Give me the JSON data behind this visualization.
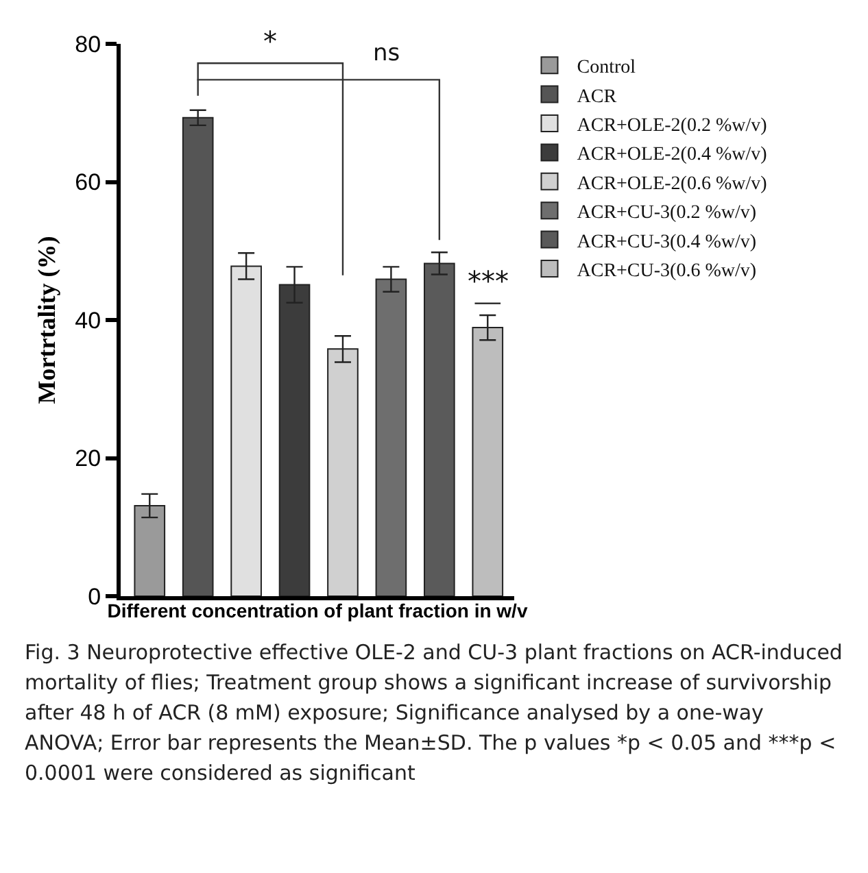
{
  "chart_data": {
    "type": "bar",
    "ylabel": "Mortrtality (%)",
    "xlabel": "Different concentration of plant fraction in w/v",
    "categories": [
      null,
      null,
      null,
      null,
      null,
      null,
      null,
      null
    ],
    "series": [
      {
        "name": "Control",
        "color": "#9a9a9a",
        "values": [
          13.1,
          null,
          null,
          null,
          null,
          null,
          null,
          null
        ],
        "errors": [
          1.7,
          null,
          null,
          null,
          null,
          null,
          null,
          null
        ]
      },
      {
        "name": "ACR",
        "color": "#555555",
        "values": [
          null,
          69.3,
          null,
          null,
          null,
          null,
          null,
          null
        ],
        "errors": [
          null,
          1.1,
          null,
          null,
          null,
          null,
          null,
          null
        ]
      },
      {
        "name": "ACR+OLE-2(0.2 %w/v)",
        "color": "#e0e0e0",
        "values": [
          null,
          null,
          47.8,
          null,
          null,
          null,
          null,
          null
        ],
        "errors": [
          null,
          null,
          1.9,
          null,
          null,
          null,
          null,
          null
        ]
      },
      {
        "name": "ACR+OLE-2(0.4 %w/v)",
        "color": "#3c3c3c",
        "values": [
          null,
          null,
          null,
          45.1,
          null,
          null,
          null,
          null
        ],
        "errors": [
          null,
          null,
          null,
          2.6,
          null,
          null,
          null,
          null
        ]
      },
      {
        "name": "ACR+OLE-2(0.6 %w/v)",
        "color": "#d0d0d0",
        "values": [
          null,
          null,
          null,
          null,
          35.8,
          null,
          null,
          null
        ],
        "errors": [
          null,
          null,
          null,
          null,
          1.9,
          null,
          null,
          null
        ]
      },
      {
        "name": "ACR+CU-3(0.2 %w/v)",
        "color": "#6e6e6e",
        "values": [
          null,
          null,
          null,
          null,
          null,
          45.9,
          null,
          null
        ],
        "errors": [
          null,
          null,
          null,
          null,
          null,
          1.8,
          null,
          null
        ]
      },
      {
        "name": "ACR+CU-3(0.4 %w/v)",
        "color": "#5a5a5a",
        "values": [
          null,
          null,
          null,
          null,
          null,
          null,
          48.2,
          null
        ],
        "errors": [
          null,
          null,
          null,
          null,
          null,
          null,
          1.6,
          null
        ]
      },
      {
        "name": "ACR+CU-3(0.6 %w/v)",
        "color": "#bdbdbd",
        "values": [
          null,
          null,
          null,
          null,
          null,
          null,
          null,
          38.9
        ],
        "errors": [
          null,
          null,
          null,
          null,
          null,
          null,
          null,
          1.8
        ]
      }
    ],
    "ylim": [
      0,
      80
    ],
    "yticks": [
      0,
      20,
      40,
      60,
      80
    ],
    "grid": false,
    "legend": "right",
    "tick_labels": "y",
    "annotations": [
      "*",
      "ns",
      "***",
      "Fig. 3 Neuroprotective effective OLE-2 and CU-3 plant fractions on ACR-induced mortality of flies; Treatment group shows a significant increase of survivorship after 48 h of ACR (8 mM) exposure; Significance analysed by a one-way ANOVA; Error bar represents the Mean±SD. The p values *p < 0.05 and ***p < 0.0001 were considered as significant"
    ]
  }
}
